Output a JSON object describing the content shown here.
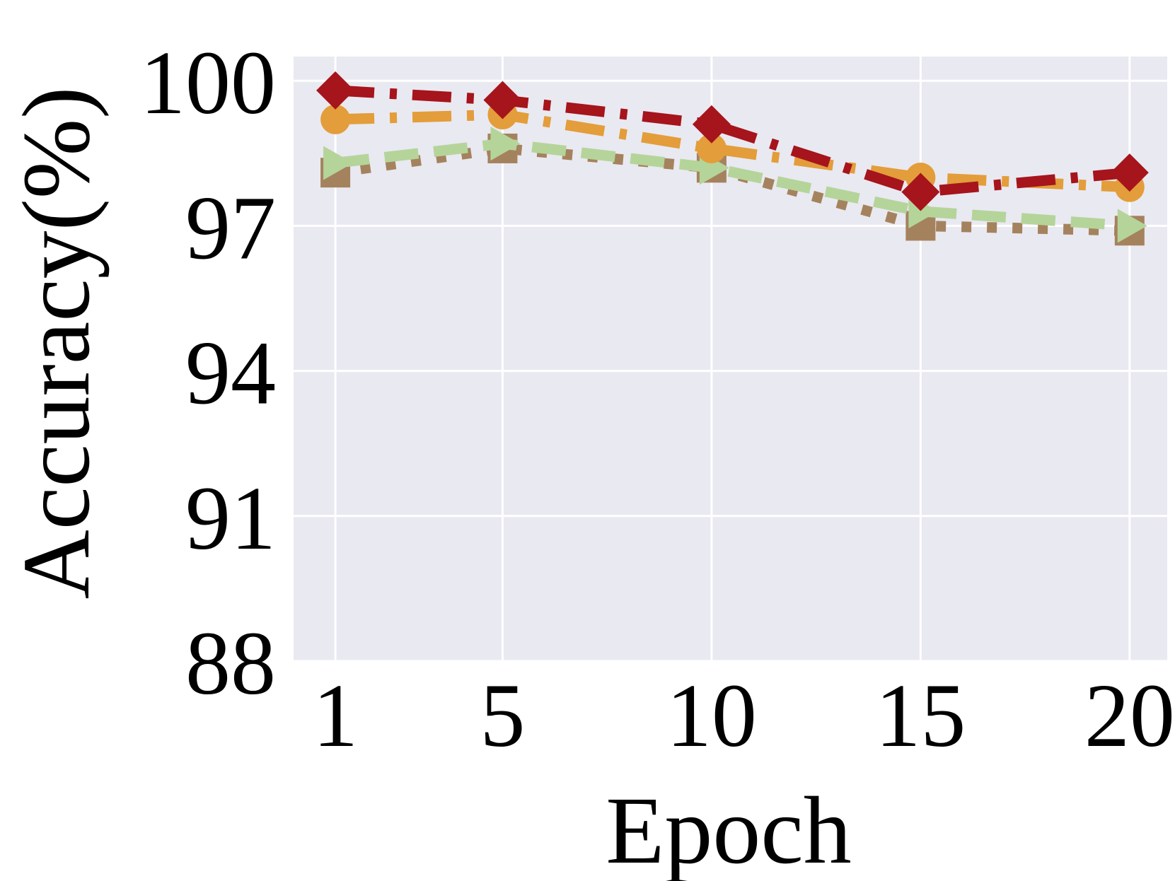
{
  "chart_data": {
    "type": "line",
    "title": "",
    "xlabel": "Epoch",
    "ylabel": "Accuracy(%)",
    "x": [
      1,
      5,
      10,
      15,
      20
    ],
    "x_tick_labels": [
      "1",
      "5",
      "10",
      "15",
      "20"
    ],
    "xlim": [
      0,
      20.9
    ],
    "ylim": [
      88,
      100.5
    ],
    "y_ticks": [
      88,
      91,
      94,
      97,
      100
    ],
    "y_tick_labels": [
      "88",
      "91",
      "94",
      "97",
      "100"
    ],
    "grid": true,
    "background": "#e9e9f1",
    "series": [
      {
        "values": [
          99.8,
          99.6,
          99.1,
          97.7,
          98.1
        ],
        "color": "#a6141c",
        "dash": "dashdot",
        "marker": "diamond"
      },
      {
        "values": [
          99.2,
          99.3,
          98.6,
          98.0,
          97.8
        ],
        "color": "#e39d3a",
        "dash": "dashdot",
        "marker": "circle"
      },
      {
        "values": [
          98.3,
          98.7,
          98.2,
          97.3,
          97.0
        ],
        "color": "#b5d49a",
        "dash": "dashed",
        "marker": "triangle-right"
      },
      {
        "values": [
          98.1,
          98.6,
          98.2,
          97.0,
          96.9
        ],
        "color": "#a5825e",
        "dash": "dotted",
        "marker": "square"
      }
    ]
  }
}
